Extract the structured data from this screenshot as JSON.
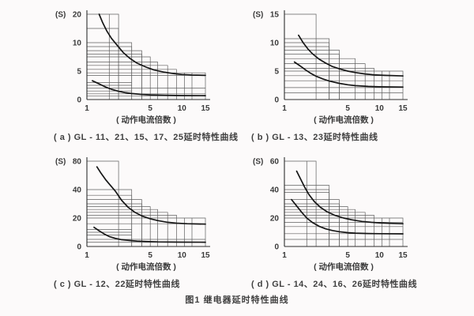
{
  "figure": {
    "caption": "图1 继电器延时特性曲线"
  },
  "chart_data": [
    {
      "id": "a",
      "type": "line",
      "title": "( a ) GL - 11、21、15、17、25延时特性曲线",
      "xlabel": "( 动作电流倍数 )",
      "ylabel": "(S)",
      "x_ticks": [
        1,
        5,
        10,
        15
      ],
      "y_ticks": [
        0,
        5,
        10,
        20
      ],
      "xlim": [
        1,
        15
      ],
      "ylim": [
        0,
        20
      ],
      "series": [
        {
          "name": "upper-limit-curve",
          "points": [
            [
              1.15,
              20
            ],
            [
              1.25,
              17
            ],
            [
              1.4,
              14
            ],
            [
              1.6,
              11.5
            ],
            [
              1.9,
              9.6
            ],
            [
              2.3,
              8.3
            ],
            [
              2.8,
              7.3
            ],
            [
              3.5,
              6.4
            ],
            [
              4.5,
              5.7
            ],
            [
              5.5,
              5.2
            ],
            [
              7,
              4.8
            ],
            [
              8.5,
              4.55
            ],
            [
              10,
              4.4
            ],
            [
              12,
              4.3
            ],
            [
              15,
              4.25
            ]
          ]
        },
        {
          "name": "lower-limit-curve",
          "points": [
            [
              1.03,
              3.3
            ],
            [
              1.15,
              2.75
            ],
            [
              1.35,
              2.2
            ],
            [
              1.6,
              1.8
            ],
            [
              2,
              1.45
            ],
            [
              2.5,
              1.2
            ],
            [
              3,
              1.05
            ],
            [
              4,
              0.9
            ],
            [
              5,
              0.82
            ],
            [
              7,
              0.75
            ],
            [
              10,
              0.7
            ],
            [
              15,
              0.68
            ]
          ]
        }
      ],
      "tolerance_steps": [
        [
          2,
          20
        ],
        [
          2,
          15
        ],
        [
          3,
          10
        ],
        [
          3,
          9.3
        ],
        [
          4,
          8.6
        ],
        [
          4,
          8
        ],
        [
          5,
          7.5
        ],
        [
          6,
          6.6
        ],
        [
          7.5,
          6
        ],
        [
          9,
          5.3
        ],
        [
          15,
          4.7
        ]
      ],
      "extra_hlines": [
        [
          4.25,
          15
        ],
        [
          3,
          3
        ],
        [
          2.5,
          3
        ],
        [
          2,
          15
        ],
        [
          1.5,
          3
        ],
        [
          1,
          15
        ],
        [
          0.65,
          15
        ]
      ],
      "extra_vlines": [
        [
          1.5,
          20
        ],
        [
          10.5,
          4.7
        ],
        [
          12,
          4.7
        ]
      ]
    },
    {
      "id": "b",
      "type": "line",
      "title": "( b ) GL - 13、23延时特性曲线",
      "xlabel": "( 动作电流倍数 )",
      "ylabel": "(S)",
      "x_ticks": [
        1,
        5,
        10,
        15
      ],
      "y_ticks": [
        0,
        5,
        10,
        15
      ],
      "xlim": [
        1,
        15
      ],
      "ylim": [
        0,
        15
      ],
      "series": [
        {
          "name": "upper-limit-curve",
          "points": [
            [
              1.2,
              11.3
            ],
            [
              1.35,
              10
            ],
            [
              1.55,
              8.9
            ],
            [
              1.8,
              8
            ],
            [
              2.2,
              7.1
            ],
            [
              2.7,
              6.4
            ],
            [
              3.3,
              5.8
            ],
            [
              4,
              5.4
            ],
            [
              5,
              5
            ],
            [
              6,
              4.75
            ],
            [
              7.5,
              4.5
            ],
            [
              9,
              4.35
            ],
            [
              11,
              4.25
            ],
            [
              15,
              4.15
            ]
          ]
        },
        {
          "name": "lower-limit-curve",
          "points": [
            [
              1.1,
              6.6
            ],
            [
              1.25,
              5.9
            ],
            [
              1.45,
              5.2
            ],
            [
              1.7,
              4.6
            ],
            [
              2,
              4.1
            ],
            [
              2.5,
              3.6
            ],
            [
              3,
              3.25
            ],
            [
              4,
              2.85
            ],
            [
              5,
              2.6
            ],
            [
              6,
              2.45
            ],
            [
              8,
              2.3
            ],
            [
              10,
              2.25
            ],
            [
              15,
              2.2
            ]
          ]
        }
      ],
      "tolerance_steps": [
        [
          2,
          15
        ],
        [
          3,
          10.7
        ],
        [
          3,
          10
        ],
        [
          3,
          9.3
        ],
        [
          4,
          8.7
        ],
        [
          4,
          8
        ],
        [
          6,
          7.2
        ],
        [
          7.5,
          6.3
        ],
        [
          9,
          5.5
        ],
        [
          15,
          5
        ]
      ],
      "extra_hlines": [
        [
          4.2,
          15
        ],
        [
          3.3,
          15
        ],
        [
          2.1,
          15
        ],
        [
          1.2,
          15
        ]
      ],
      "extra_vlines": [
        [
          10.5,
          5
        ],
        [
          12,
          5
        ]
      ]
    },
    {
      "id": "c",
      "type": "line",
      "title": "( c ) GL - 12、22延时特性曲线",
      "xlabel": "( 动作电流倍数 )",
      "ylabel": "(S)",
      "x_ticks": [
        1,
        5,
        10,
        15
      ],
      "y_ticks": [
        0,
        20,
        40,
        80
      ],
      "xlim": [
        1,
        15
      ],
      "ylim": [
        0,
        80
      ],
      "series": [
        {
          "name": "upper-limit-curve",
          "points": [
            [
              1.1,
              72
            ],
            [
              1.2,
              63
            ],
            [
              1.35,
              54
            ],
            [
              1.55,
              46
            ],
            [
              1.8,
              39
            ],
            [
              2.2,
              32.5
            ],
            [
              2.7,
              27.5
            ],
            [
              3.3,
              24
            ],
            [
              4,
              21.5
            ],
            [
              5,
              19.5
            ],
            [
              6,
              18.2
            ],
            [
              7.5,
              17
            ],
            [
              9,
              16.4
            ],
            [
              11,
              16
            ],
            [
              15,
              15.7
            ]
          ]
        },
        {
          "name": "lower-limit-curve",
          "points": [
            [
              1.05,
              13.5
            ],
            [
              1.15,
              11
            ],
            [
              1.3,
              8.8
            ],
            [
              1.5,
              7
            ],
            [
              1.8,
              5.7
            ],
            [
              2.2,
              4.8
            ],
            [
              2.8,
              4.2
            ],
            [
              3.5,
              3.8
            ],
            [
              4.5,
              3.5
            ],
            [
              6,
              3.25
            ],
            [
              8,
              3.1
            ],
            [
              10,
              3.05
            ],
            [
              15,
              3
            ]
          ]
        }
      ],
      "tolerance_steps": [
        [
          2,
          80
        ],
        [
          3,
          40
        ],
        [
          3,
          36
        ],
        [
          4,
          33
        ],
        [
          4,
          30
        ],
        [
          5,
          28
        ],
        [
          6,
          26
        ],
        [
          7.5,
          24
        ],
        [
          9,
          22
        ],
        [
          15,
          20
        ]
      ],
      "extra_hlines": [
        [
          16,
          15
        ],
        [
          12,
          3
        ],
        [
          10,
          3
        ],
        [
          8,
          3
        ],
        [
          5,
          15
        ],
        [
          3,
          15
        ]
      ],
      "extra_vlines": [
        [
          10.5,
          20
        ],
        [
          12,
          20
        ]
      ]
    },
    {
      "id": "d",
      "type": "line",
      "title": "( d ) GL - 14、24、16、26延时特性曲线",
      "xlabel": "( 动作电流倍数 )",
      "ylabel": "(S)",
      "x_ticks": [
        1,
        5,
        10,
        15
      ],
      "y_ticks": [
        0,
        20,
        40,
        60
      ],
      "xlim": [
        1,
        15
      ],
      "ylim": [
        0,
        60
      ],
      "series": [
        {
          "name": "upper-limit-curve",
          "points": [
            [
              1.15,
              53
            ],
            [
              1.25,
              48
            ],
            [
              1.4,
              42
            ],
            [
              1.6,
              36.5
            ],
            [
              1.9,
              31.5
            ],
            [
              2.3,
              27.5
            ],
            [
              2.8,
              24.5
            ],
            [
              3.5,
              22
            ],
            [
              4.5,
              20
            ],
            [
              5.5,
              18.8
            ],
            [
              7,
              17.6
            ],
            [
              8.5,
              17
            ],
            [
              10,
              16.6
            ],
            [
              12,
              16.3
            ],
            [
              15,
              16
            ]
          ]
        },
        {
          "name": "lower-limit-curve",
          "points": [
            [
              1.05,
              33
            ],
            [
              1.15,
              28.5
            ],
            [
              1.3,
              24
            ],
            [
              1.5,
              20
            ],
            [
              1.8,
              16.7
            ],
            [
              2.2,
              14.2
            ],
            [
              2.7,
              12.4
            ],
            [
              3.3,
              11.2
            ],
            [
              4,
              10.4
            ],
            [
              5,
              9.7
            ],
            [
              6,
              9.4
            ],
            [
              8,
              9.1
            ],
            [
              10,
              9
            ],
            [
              15,
              8.9
            ]
          ]
        }
      ],
      "tolerance_steps": [
        [
          2,
          60
        ],
        [
          3,
          43
        ],
        [
          3,
          40
        ],
        [
          3,
          38
        ],
        [
          4,
          33
        ],
        [
          4,
          30
        ],
        [
          5,
          28
        ],
        [
          6,
          26
        ],
        [
          7.5,
          24
        ],
        [
          9,
          22
        ],
        [
          15,
          20
        ]
      ],
      "extra_hlines": [
        [
          17,
          15
        ],
        [
          14,
          15
        ],
        [
          9,
          15
        ],
        [
          5,
          15
        ]
      ],
      "extra_vlines": [
        [
          1.5,
          60
        ],
        [
          10.5,
          20
        ],
        [
          12,
          20
        ]
      ]
    }
  ]
}
